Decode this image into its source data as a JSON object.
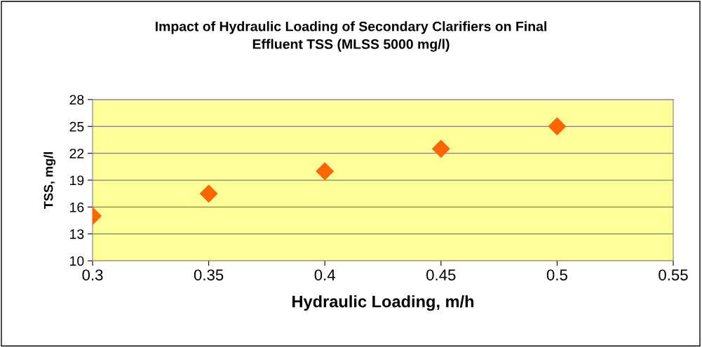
{
  "chart_data": {
    "type": "scatter",
    "title": "Impact of Hydraulic Loading of Secondary Clarifiers on Final\nEffluent TSS (MLSS 5000 mg/l)",
    "xlabel": "Hydraulic Loading, m/h",
    "ylabel": "TSS, mg/l",
    "x": [
      0.3,
      0.35,
      0.4,
      0.45,
      0.5
    ],
    "series": [
      {
        "color": "#ff6600",
        "values": [
          15,
          17.5,
          20,
          22.5,
          25
        ]
      }
    ],
    "xlim": [
      0.3,
      0.55
    ],
    "xticks": [
      0.3,
      0.35,
      0.4,
      0.45,
      0.5,
      0.55
    ],
    "ylim": [
      10,
      28
    ],
    "yticks": [
      10,
      13,
      16,
      19,
      22,
      25,
      28
    ],
    "grid": "y",
    "marker": "diamond"
  }
}
